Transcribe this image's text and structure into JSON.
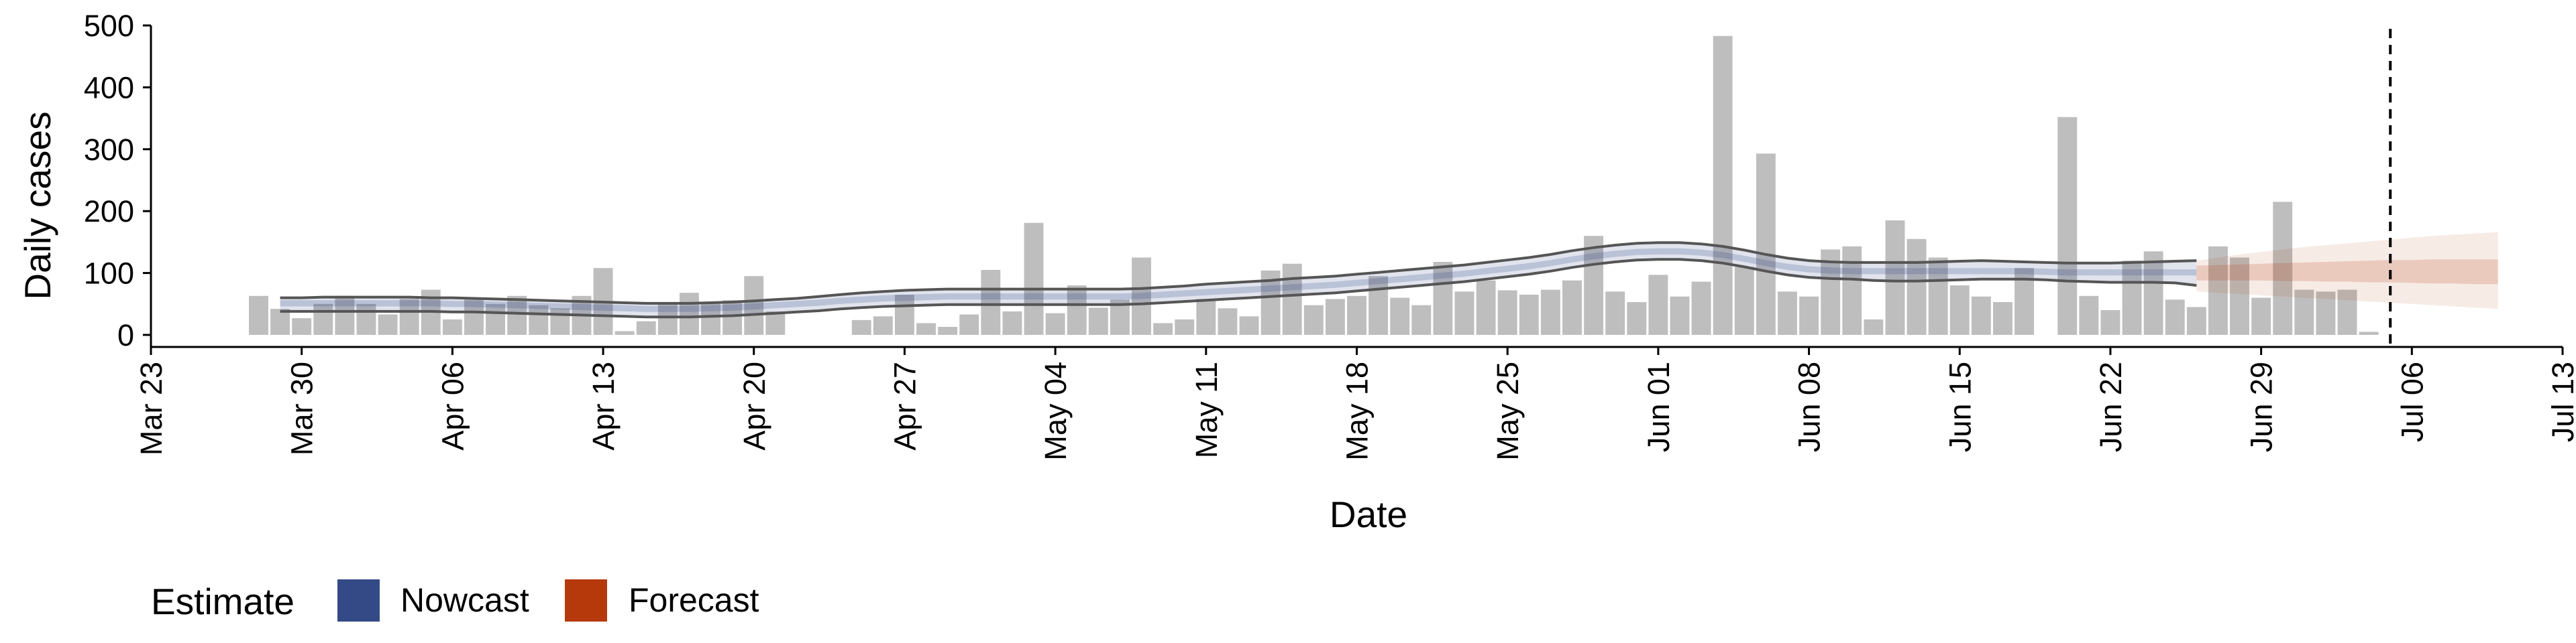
{
  "chart_data": {
    "type": "bar",
    "xlabel": "Date",
    "ylabel": "Daily cases",
    "ylim": [
      0,
      500
    ],
    "yticks": [
      0,
      100,
      200,
      300,
      400,
      500
    ],
    "xlim": [
      "2020-03-23",
      "2020-07-13"
    ],
    "xticks": [
      "2020-03-23",
      "2020-03-30",
      "2020-04-06",
      "2020-04-13",
      "2020-04-20",
      "2020-04-27",
      "2020-05-04",
      "2020-05-11",
      "2020-05-18",
      "2020-05-25",
      "2020-06-01",
      "2020-06-08",
      "2020-06-15",
      "2020-06-22",
      "2020-06-29",
      "2020-07-06",
      "2020-07-13"
    ],
    "xtick_labels": [
      "Mar 23",
      "Mar 30",
      "Apr 06",
      "Apr 13",
      "Apr 20",
      "Apr 27",
      "May 04",
      "May 11",
      "May 18",
      "May 25",
      "Jun 01",
      "Jun 08",
      "Jun 15",
      "Jun 22",
      "Jun 29",
      "Jul 06",
      "Jul 13"
    ],
    "grid": false,
    "bar_color": "#bebebe",
    "bars": {
      "start": "2020-03-28",
      "values": [
        63,
        42,
        27,
        50,
        63,
        50,
        33,
        58,
        73,
        25,
        58,
        50,
        63,
        48,
        43,
        63,
        108,
        6,
        22,
        50,
        68,
        52,
        56,
        95,
        38,
        0,
        0,
        0,
        24,
        30,
        65,
        19,
        13,
        33,
        105,
        38,
        181,
        35,
        80,
        44,
        57,
        125,
        19,
        25,
        58,
        43,
        30,
        104,
        115,
        48,
        58,
        63,
        95,
        60,
        48,
        118,
        70,
        88,
        72,
        65,
        73,
        88,
        160,
        70,
        53,
        97,
        62,
        86,
        483,
        110,
        293,
        70,
        62,
        138,
        143,
        25,
        185,
        155,
        125,
        80,
        62,
        53,
        108,
        0,
        352,
        63,
        40,
        120,
        135,
        57,
        45,
        143,
        125,
        60,
        215,
        73,
        70,
        73,
        5
      ]
    },
    "nowcast": {
      "start": "2020-03-29",
      "mid": [
        51,
        51,
        51,
        51,
        51,
        51,
        51,
        51,
        50,
        50,
        49,
        48,
        47,
        46,
        45,
        44,
        43,
        42,
        42,
        42,
        43,
        44,
        46,
        48,
        50,
        52,
        55,
        57,
        59,
        60,
        61,
        62,
        62,
        62,
        62,
        62,
        62,
        62,
        62,
        62,
        63,
        65,
        67,
        69,
        71,
        73,
        75,
        77,
        79,
        81,
        84,
        87,
        90,
        93,
        96,
        99,
        103,
        107,
        111,
        116,
        122,
        127,
        131,
        134,
        135,
        135,
        133,
        129,
        123,
        116,
        110,
        106,
        104,
        103,
        103,
        103,
        103,
        103,
        103,
        103,
        103,
        103,
        102,
        101,
        101,
        101,
        101,
        101,
        101,
        101
      ],
      "outer_low": [
        38,
        38,
        38,
        38,
        38,
        38,
        38,
        38,
        37,
        37,
        36,
        35,
        34,
        33,
        32,
        31,
        30,
        29,
        29,
        29,
        30,
        31,
        33,
        35,
        37,
        39,
        42,
        44,
        46,
        47,
        48,
        49,
        49,
        49,
        49,
        49,
        49,
        49,
        49,
        49,
        50,
        52,
        54,
        56,
        58,
        60,
        62,
        64,
        66,
        68,
        71,
        74,
        77,
        80,
        83,
        86,
        90,
        94,
        98,
        103,
        109,
        114,
        118,
        121,
        122,
        122,
        120,
        116,
        110,
        103,
        97,
        93,
        91,
        90,
        88,
        87,
        87,
        88,
        89,
        90,
        90,
        90,
        89,
        87,
        86,
        85,
        85,
        85,
        84,
        80
      ],
      "outer_high": [
        60,
        60,
        61,
        61,
        61,
        61,
        61,
        60,
        60,
        59,
        58,
        57,
        56,
        55,
        54,
        53,
        52,
        51,
        51,
        51,
        52,
        53,
        55,
        57,
        59,
        62,
        65,
        68,
        70,
        72,
        73,
        74,
        74,
        74,
        74,
        74,
        74,
        74,
        74,
        74,
        75,
        77,
        79,
        82,
        84,
        86,
        88,
        91,
        93,
        95,
        98,
        101,
        104,
        107,
        110,
        113,
        117,
        121,
        125,
        130,
        136,
        141,
        145,
        148,
        149,
        149,
        147,
        143,
        137,
        130,
        124,
        120,
        118,
        117,
        117,
        117,
        117,
        118,
        119,
        120,
        119,
        118,
        117,
        116,
        116,
        116,
        117,
        118,
        119,
        120
      ],
      "inner_low": [
        46,
        46,
        46,
        46,
        46,
        46,
        46,
        46,
        45,
        45,
        44,
        43,
        42,
        41,
        40,
        39,
        38,
        37,
        37,
        37,
        38,
        39,
        41,
        43,
        45,
        47,
        50,
        52,
        54,
        55,
        56,
        57,
        57,
        57,
        57,
        57,
        57,
        57,
        57,
        57,
        58,
        60,
        62,
        64,
        66,
        68,
        70,
        72,
        74,
        76,
        79,
        82,
        85,
        88,
        91,
        94,
        98,
        102,
        106,
        111,
        117,
        122,
        126,
        129,
        130,
        130,
        128,
        124,
        118,
        111,
        105,
        101,
        99,
        98,
        98,
        98,
        98,
        98,
        98,
        98,
        98,
        98,
        97,
        96,
        96,
        96,
        96,
        96,
        96,
        96
      ],
      "inner_high": [
        56,
        56,
        56,
        56,
        56,
        56,
        56,
        56,
        55,
        55,
        54,
        53,
        52,
        51,
        50,
        49,
        48,
        47,
        47,
        47,
        48,
        49,
        51,
        53,
        55,
        57,
        60,
        62,
        64,
        65,
        66,
        67,
        67,
        67,
        67,
        67,
        67,
        67,
        67,
        67,
        68,
        70,
        72,
        74,
        76,
        78,
        80,
        82,
        84,
        86,
        89,
        92,
        95,
        98,
        101,
        104,
        108,
        112,
        116,
        121,
        127,
        132,
        136,
        139,
        140,
        140,
        138,
        134,
        128,
        121,
        115,
        111,
        109,
        108,
        108,
        108,
        108,
        108,
        108,
        108,
        108,
        108,
        107,
        106,
        106,
        106,
        106,
        106,
        106,
        106
      ]
    },
    "forecast": {
      "start": "2020-06-26",
      "mid": [
        100,
        101,
        102,
        103,
        103,
        104,
        104,
        104,
        104,
        104,
        104,
        103,
        103,
        102,
        102
      ],
      "outer_low": [
        70,
        68,
        66,
        64,
        62,
        60,
        58,
        56,
        54,
        52,
        50,
        48,
        46,
        44,
        42
      ],
      "outer_high": [
        120,
        125,
        130,
        134,
        138,
        142,
        145,
        148,
        151,
        154,
        157,
        160,
        162,
        164,
        166
      ],
      "inner_low": [
        88,
        88,
        88,
        88,
        87,
        87,
        86,
        86,
        85,
        85,
        84,
        83,
        83,
        82,
        82
      ],
      "inner_high": [
        112,
        113,
        114,
        115,
        116,
        117,
        118,
        119,
        120,
        121,
        121,
        122,
        122,
        122,
        122
      ]
    },
    "vline_date": "2020-07-05",
    "legend": {
      "title": "Estimate",
      "position": "bottom-left",
      "items": [
        {
          "label": "Nowcast",
          "color": "#334a87"
        },
        {
          "label": "Forecast",
          "color": "#b5390b"
        }
      ]
    }
  }
}
